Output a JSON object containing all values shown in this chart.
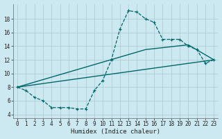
{
  "xlabel": "Humidex (Indice chaleur)",
  "bg_color": "#cce8f0",
  "grid_color": "#b0ccd4",
  "line_color": "#006868",
  "xlim": [
    -0.5,
    23.5
  ],
  "ylim": [
    3.5,
    20.2
  ],
  "yticks": [
    4,
    6,
    8,
    10,
    12,
    14,
    16,
    18
  ],
  "xticks": [
    0,
    1,
    2,
    3,
    4,
    5,
    6,
    7,
    8,
    9,
    10,
    11,
    12,
    13,
    14,
    15,
    16,
    17,
    18,
    19,
    20,
    21,
    22,
    23
  ],
  "line1_x": [
    0,
    1,
    2,
    3,
    4,
    5,
    6,
    7,
    8,
    9,
    10,
    11,
    12,
    13,
    14,
    15,
    16,
    17,
    18,
    19,
    20,
    21,
    22,
    23
  ],
  "line1_y": [
    8,
    7.5,
    6.5,
    6,
    5,
    5,
    5,
    4.8,
    4.8,
    7.5,
    9,
    12,
    16.5,
    19.2,
    19,
    18,
    17.5,
    15,
    15,
    15,
    14,
    13.5,
    11.5,
    12
  ],
  "line2_x": [
    0,
    23
  ],
  "line2_y": [
    8,
    12
  ],
  "line3_x": [
    0,
    15,
    20,
    23
  ],
  "line3_y": [
    8,
    13.5,
    14.2,
    12
  ]
}
